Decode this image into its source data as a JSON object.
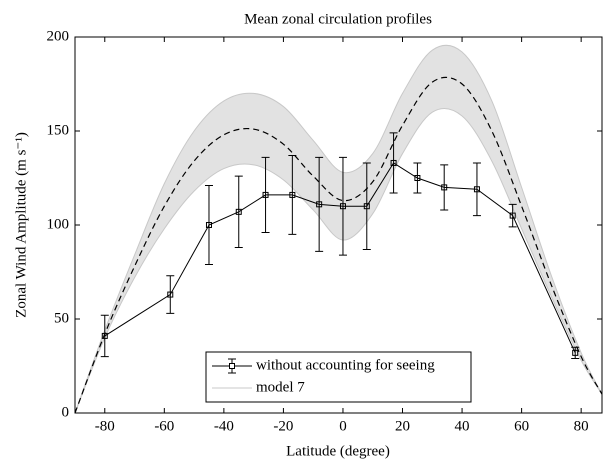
{
  "chart_data": {
    "type": "line",
    "title": "Mean zonal circulation profiles",
    "xlabel": "Latitude (degree)",
    "ylabel": "Zonal Wind Amplitude (m s⁻¹)",
    "xlim": [
      -90,
      87
    ],
    "ylim": [
      0,
      200
    ],
    "xticks": [
      -80,
      -60,
      -40,
      -20,
      0,
      20,
      40,
      60,
      80
    ],
    "yticks": [
      0,
      50,
      100,
      150,
      200
    ],
    "legend": "lower center",
    "series": [
      {
        "name": "without accounting for seeing",
        "color": "#000000",
        "x": [
          -80,
          -58,
          -45,
          -35,
          -26,
          -17,
          -8,
          0,
          8,
          17,
          25,
          34,
          45,
          57,
          78
        ],
        "values": [
          41,
          63,
          100,
          107,
          116,
          116,
          111,
          110,
          110,
          133,
          125,
          120,
          119,
          105,
          32
        ],
        "errors": [
          11,
          10,
          21,
          19,
          20,
          21,
          25,
          26,
          23,
          16,
          8,
          12,
          14,
          6,
          3
        ]
      },
      {
        "name": "model 7",
        "color": "#c8c8c8",
        "x": [
          -90,
          -80,
          -70,
          -60,
          -50,
          -40,
          -30,
          -20,
          -10,
          0,
          10,
          20,
          30,
          40,
          50,
          60,
          70,
          80,
          87
        ],
        "lower": [
          0,
          40,
          72,
          98,
          118,
          130,
          132,
          124,
          108,
          92,
          106,
          138,
          160,
          158,
          134,
          98,
          62,
          28,
          10
        ],
        "upper": [
          0,
          44,
          84,
          122,
          150,
          166,
          170,
          163,
          145,
          128,
          138,
          170,
          193,
          192,
          166,
          120,
          73,
          32,
          10
        ]
      }
    ],
    "mean_curve": {
      "color": "#000000",
      "x": [
        -90,
        -80,
        -70,
        -60,
        -50,
        -40,
        -30,
        -20,
        -10,
        0,
        10,
        20,
        30,
        40,
        50,
        60,
        70,
        80,
        87
      ],
      "values": [
        0,
        42,
        78,
        110,
        134,
        148,
        151,
        143,
        126,
        113,
        123,
        153,
        176,
        175,
        150,
        110,
        68,
        30,
        10
      ]
    }
  }
}
